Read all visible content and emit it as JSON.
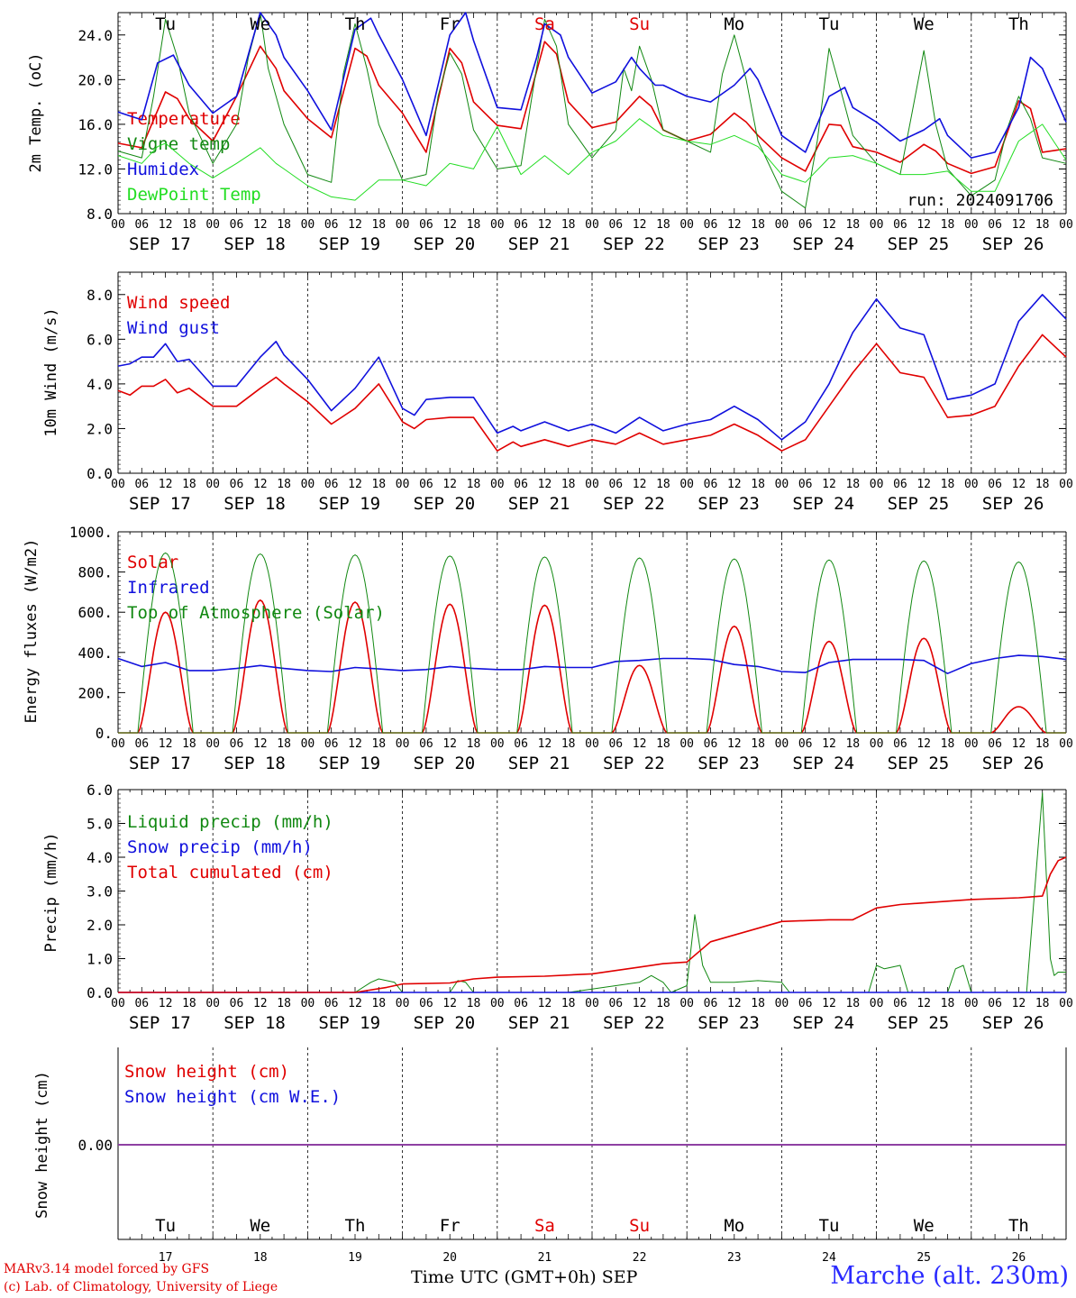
{
  "days": {
    "weekdays": [
      "Tu",
      "We",
      "Th",
      "Fr",
      "Sa",
      "Su",
      "Mo",
      "Tu",
      "We",
      "Th"
    ],
    "weekend_flags": [
      false,
      false,
      false,
      false,
      true,
      true,
      false,
      false,
      false,
      false
    ],
    "dates": [
      "SEP 17",
      "SEP 18",
      "SEP 19",
      "SEP 20",
      "SEP 21",
      "SEP 22",
      "SEP 23",
      "SEP 24",
      "SEP 25",
      "SEP 26"
    ],
    "day_numbers": [
      "17",
      "18",
      "19",
      "20",
      "21",
      "22",
      "23",
      "24",
      "25",
      "26"
    ],
    "hour_ticks": [
      "00",
      "06",
      "12",
      "18"
    ],
    "last_tick": "00"
  },
  "colors": {
    "red": "#e00000",
    "green": "#118811",
    "blue": "#1010dd",
    "light_green": "#22dd22",
    "purple": "#8a3aa0",
    "weekend": "#e00000"
  },
  "chart_data": [
    {
      "id": "temperature",
      "type": "line",
      "ylabel": "2m Temp. (oC)",
      "ylim": [
        8,
        26
      ],
      "yticks": [
        "8.0",
        "12.0",
        "16.0",
        "20.0",
        "24.0"
      ],
      "x_unit": "hours since SEP 17 00 UTC",
      "annotation": "run: 2024091706",
      "series": [
        {
          "name": "Temperature",
          "color": "red",
          "x": [
            0,
            6,
            12,
            15,
            18,
            24,
            30,
            36,
            40,
            42,
            48,
            54,
            60,
            63,
            66,
            72,
            78,
            84,
            87,
            90,
            96,
            102,
            108,
            111,
            114,
            120,
            126,
            132,
            135,
            138,
            144,
            150,
            156,
            159,
            162,
            168,
            174,
            180,
            183,
            186,
            192,
            198,
            204,
            207,
            210,
            216,
            222,
            228,
            231,
            234,
            240
          ],
          "y": [
            14.3,
            13.9,
            18.9,
            18.3,
            16.5,
            14.5,
            18.5,
            23,
            21,
            19,
            16.5,
            14.8,
            22.8,
            22.1,
            19.5,
            17,
            13.5,
            22.8,
            21.5,
            18,
            15.9,
            15.6,
            23.4,
            22.3,
            18,
            15.7,
            16.2,
            18.5,
            17.6,
            15.5,
            14.5,
            15.1,
            17,
            16.2,
            15,
            13,
            11.8,
            16,
            15.9,
            14,
            13.5,
            12.6,
            14.2,
            13.6,
            12.5,
            11.6,
            12.2,
            18.1,
            17.4,
            13.5,
            13.8
          ]
        },
        {
          "name": "Vigne temp",
          "color": "green",
          "x": [
            0,
            6,
            9,
            12,
            15,
            18,
            24,
            30,
            33,
            36,
            38,
            42,
            48,
            54,
            57,
            60,
            63,
            66,
            72,
            78,
            81,
            84,
            87,
            90,
            96,
            102,
            105,
            108,
            111,
            114,
            120,
            126,
            128,
            130,
            132,
            135,
            138,
            144,
            150,
            153,
            156,
            159,
            162,
            168,
            174,
            177,
            180,
            183,
            186,
            192,
            198,
            201,
            204,
            207,
            210,
            216,
            222,
            225,
            228,
            231,
            234,
            240
          ],
          "y": [
            13.6,
            13,
            18.5,
            25.4,
            22,
            17,
            12.5,
            16,
            22,
            26,
            21,
            16,
            11.5,
            10.8,
            20.5,
            25,
            21,
            16,
            11,
            11.5,
            18.5,
            22.4,
            20.5,
            15.5,
            12,
            12.3,
            19,
            25.4,
            23,
            16,
            13,
            15.5,
            21,
            19,
            23,
            20,
            15.5,
            14.5,
            13.5,
            20.5,
            24,
            20,
            14.5,
            10,
            8.5,
            14.5,
            22.8,
            19,
            15,
            12.5,
            11.5,
            17,
            22.6,
            16,
            12,
            9.6,
            11,
            15.5,
            18.5,
            16.5,
            13,
            12.5
          ]
        },
        {
          "name": "Humidex",
          "color": "blue",
          "x": [
            0,
            6,
            10,
            14,
            18,
            24,
            30,
            34,
            36,
            40,
            42,
            48,
            54,
            60,
            64,
            66,
            72,
            78,
            84,
            88,
            90,
            96,
            102,
            106,
            108,
            112,
            114,
            120,
            126,
            130,
            132,
            136,
            138,
            144,
            150,
            156,
            160,
            162,
            168,
            174,
            180,
            184,
            186,
            192,
            198,
            204,
            208,
            210,
            216,
            222,
            228,
            231,
            234,
            240
          ],
          "y": [
            17.1,
            16.4,
            21.5,
            22.2,
            19.5,
            17,
            18.5,
            23.5,
            26,
            24,
            22,
            19,
            15.5,
            24.5,
            25.5,
            24,
            20,
            15,
            24,
            26,
            23.5,
            17.5,
            17.3,
            22,
            25,
            24,
            22,
            18.8,
            19.8,
            22,
            21,
            19.5,
            19.5,
            18.5,
            18,
            19.5,
            21,
            20,
            15,
            13.5,
            18.5,
            19.3,
            17.5,
            16.2,
            14.5,
            15.5,
            16.5,
            15,
            13,
            13.5,
            17.5,
            22,
            21,
            16.2
          ]
        },
        {
          "name": "DewPoint Temp",
          "color": "light_green",
          "x": [
            0,
            6,
            10,
            12,
            18,
            24,
            30,
            36,
            40,
            42,
            48,
            54,
            60,
            66,
            72,
            78,
            84,
            90,
            96,
            102,
            108,
            114,
            120,
            126,
            132,
            138,
            144,
            150,
            156,
            162,
            168,
            174,
            180,
            186,
            192,
            198,
            204,
            210,
            216,
            222,
            228,
            234,
            240
          ],
          "y": [
            13.2,
            12.5,
            14,
            14.3,
            12.5,
            11.2,
            12.5,
            13.9,
            12.5,
            12,
            10.5,
            9.5,
            9.2,
            11,
            11,
            10.5,
            12.5,
            12,
            15.8,
            11.5,
            13.2,
            11.5,
            13.5,
            14.5,
            16.5,
            15,
            14.5,
            14.2,
            15,
            14,
            11.5,
            10.8,
            13,
            13.2,
            12.5,
            11.5,
            11.5,
            11.8,
            10,
            10,
            14.5,
            16,
            12.8
          ]
        }
      ]
    },
    {
      "id": "wind",
      "type": "line",
      "ylabel": "10m Wind (m/s)",
      "ylim": [
        0,
        9
      ],
      "yticks": [
        "0.0",
        "2.0",
        "4.0",
        "6.0",
        "8.0"
      ],
      "reference_line": 5,
      "series": [
        {
          "name": "Wind speed",
          "color": "red",
          "x": [
            0,
            3,
            6,
            9,
            12,
            15,
            18,
            24,
            30,
            36,
            40,
            42,
            48,
            54,
            60,
            66,
            72,
            75,
            78,
            84,
            90,
            96,
            100,
            102,
            108,
            114,
            120,
            126,
            132,
            138,
            144,
            150,
            156,
            162,
            168,
            174,
            180,
            186,
            192,
            198,
            204,
            210,
            216,
            222,
            228,
            234,
            240
          ],
          "y": [
            3.7,
            3.5,
            3.9,
            3.9,
            4.2,
            3.6,
            3.8,
            3,
            3,
            3.8,
            4.3,
            4,
            3.2,
            2.2,
            2.9,
            4,
            2.3,
            2,
            2.4,
            2.5,
            2.5,
            1,
            1.4,
            1.2,
            1.5,
            1.2,
            1.5,
            1.3,
            1.8,
            1.3,
            1.5,
            1.7,
            2.2,
            1.7,
            1,
            1.5,
            3,
            4.5,
            5.8,
            4.5,
            4.3,
            2.5,
            2.6,
            3,
            4.8,
            6.2,
            5.2
          ]
        },
        {
          "name": "Wind gust",
          "color": "blue",
          "x": [
            0,
            3,
            6,
            9,
            12,
            15,
            18,
            24,
            30,
            36,
            40,
            42,
            48,
            54,
            60,
            66,
            72,
            75,
            78,
            84,
            90,
            96,
            100,
            102,
            108,
            114,
            120,
            126,
            132,
            138,
            144,
            150,
            156,
            162,
            168,
            174,
            180,
            186,
            192,
            198,
            204,
            210,
            216,
            222,
            228,
            234,
            240
          ],
          "y": [
            4.8,
            4.9,
            5.2,
            5.2,
            5.8,
            5,
            5.1,
            3.9,
            3.9,
            5.2,
            5.9,
            5.3,
            4.2,
            2.8,
            3.8,
            5.2,
            2.9,
            2.6,
            3.3,
            3.4,
            3.4,
            1.8,
            2.1,
            1.9,
            2.3,
            1.9,
            2.2,
            1.8,
            2.5,
            1.9,
            2.2,
            2.4,
            3,
            2.4,
            1.5,
            2.3,
            4,
            6.3,
            7.8,
            6.5,
            6.2,
            3.3,
            3.5,
            4,
            6.8,
            8,
            6.9
          ]
        }
      ]
    },
    {
      "id": "energy",
      "type": "line",
      "ylabel": "Energy fluxes (W/m2)",
      "ylim": [
        0,
        1000
      ],
      "yticks": [
        "0.",
        "200.",
        "400.",
        "600.",
        "800.",
        "1000."
      ],
      "series": [
        {
          "name": "Solar",
          "color": "red",
          "daily_peaks": [
            600,
            660,
            650,
            640,
            635,
            335,
            530,
            455,
            470,
            130
          ]
        },
        {
          "name": "Infrared",
          "color": "blue",
          "x": [
            0,
            6,
            12,
            18,
            24,
            30,
            36,
            42,
            48,
            54,
            60,
            66,
            72,
            78,
            84,
            90,
            96,
            102,
            108,
            114,
            120,
            126,
            132,
            138,
            144,
            150,
            156,
            162,
            168,
            174,
            180,
            186,
            192,
            198,
            204,
            210,
            216,
            222,
            228,
            234,
            240
          ],
          "y": [
            370,
            330,
            350,
            310,
            310,
            320,
            335,
            320,
            310,
            305,
            325,
            318,
            310,
            315,
            330,
            320,
            315,
            315,
            330,
            325,
            325,
            355,
            360,
            370,
            370,
            365,
            340,
            330,
            305,
            300,
            350,
            365,
            365,
            365,
            360,
            295,
            345,
            370,
            385,
            380,
            365
          ]
        },
        {
          "name": "Top of Atmosphere (Solar)",
          "color": "green",
          "daily_peaks": [
            895,
            890,
            885,
            880,
            875,
            870,
            865,
            860,
            855,
            850
          ]
        }
      ]
    },
    {
      "id": "precip",
      "type": "line",
      "ylabel": "Precip (mm/h)",
      "ylim": [
        0,
        6
      ],
      "yticks": [
        "0.0",
        "1.0",
        "2.0",
        "3.0",
        "4.0",
        "5.0",
        "6.0"
      ],
      "series": [
        {
          "name": "Liquid precip (mm/h)",
          "color": "green",
          "x": [
            0,
            60,
            64,
            66,
            70,
            72,
            84,
            86,
            88,
            90,
            96,
            108,
            114,
            120,
            126,
            132,
            135,
            138,
            140,
            144,
            146,
            148,
            150,
            152,
            156,
            162,
            168,
            170,
            180,
            190,
            192,
            194,
            198,
            200,
            210,
            212,
            214,
            216,
            230,
            234,
            236,
            237,
            238,
            240
          ],
          "y": [
            0,
            0,
            0.3,
            0.4,
            0.3,
            0,
            0,
            0.35,
            0.3,
            0,
            0,
            0,
            0,
            0.1,
            0.2,
            0.3,
            0.5,
            0.3,
            0,
            0.2,
            2.3,
            0.8,
            0.3,
            0.3,
            0.3,
            0.35,
            0.3,
            0,
            0,
            0,
            0.8,
            0.7,
            0.8,
            0,
            0,
            0.7,
            0.8,
            0,
            0,
            5.9,
            1,
            0.5,
            0.6,
            0.6
          ]
        },
        {
          "name": "Snow precip (mm/h)",
          "color": "blue",
          "x": [
            0,
            240
          ],
          "y": [
            0,
            0
          ]
        },
        {
          "name": "Total cumulated (cm)",
          "color": "red",
          "x": [
            0,
            60,
            68,
            72,
            84,
            90,
            96,
            108,
            120,
            132,
            138,
            144,
            150,
            156,
            162,
            168,
            180,
            186,
            192,
            198,
            216,
            228,
            234,
            236,
            238,
            240
          ],
          "y": [
            0,
            0,
            0.15,
            0.25,
            0.28,
            0.4,
            0.45,
            0.48,
            0.55,
            0.75,
            0.85,
            0.9,
            1.5,
            1.7,
            1.9,
            2.1,
            2.15,
            2.15,
            2.5,
            2.6,
            2.75,
            2.8,
            2.85,
            3.5,
            3.9,
            4
          ]
        }
      ]
    },
    {
      "id": "snow",
      "type": "line",
      "ylabel": "Snow height (cm)",
      "yticks": [
        "0.00"
      ],
      "series": [
        {
          "name": "Snow height (cm)",
          "color": "red",
          "x": [
            0,
            240
          ],
          "y": [
            0,
            0
          ]
        },
        {
          "name": "Snow height (cm W.E.)",
          "color": "blue",
          "x": [
            0,
            240
          ],
          "y": [
            0,
            0
          ]
        }
      ]
    }
  ],
  "footer": {
    "model": "MARv3.14 model forced by GFS",
    "credit": "(c) Lab. of Climatology, University of Liege",
    "time_label": "Time UTC (GMT+0h) SEP",
    "station": "Marche (alt. 230m)"
  }
}
